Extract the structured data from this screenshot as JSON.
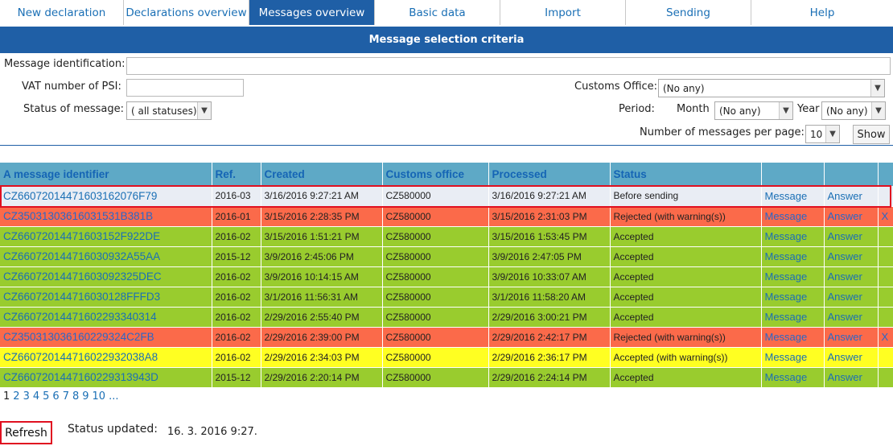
{
  "nav": {
    "tabs": [
      {
        "label": "New declaration",
        "active": false
      },
      {
        "label": "Declarations overview",
        "active": false
      },
      {
        "label": "Messages overview",
        "active": true
      },
      {
        "label": "Basic data",
        "active": false
      },
      {
        "label": "Import",
        "active": false
      },
      {
        "label": "Sending",
        "active": false
      },
      {
        "label": "Help",
        "active": false
      }
    ]
  },
  "criteria": {
    "title": "Message selection criteria",
    "message_id_label": "Message identification:",
    "message_id_value": "",
    "vat_label": "VAT number of PSI:",
    "vat_value": "",
    "status_label": "Status of message:",
    "status_value": "( all statuses)",
    "customs_office_label": "Customs Office:",
    "customs_office_value": "(No any)",
    "period_label": "Period:",
    "month_label": "Month",
    "month_value": "(No any)",
    "year_label": "Year",
    "year_value": "(No any)",
    "per_page_label": "Number of messages per page:",
    "per_page_value": "10",
    "show_button": "Show"
  },
  "table": {
    "headers": [
      "A message identifier",
      "Ref.",
      "Created",
      "Customs office",
      "Processed",
      "Status",
      "",
      "",
      ""
    ],
    "rows": [
      {
        "status_class": "before",
        "id": "CZ6607201447160316207​6F79",
        "ref": "2016-03",
        "created": "3/16/2016 9:27:21 AM",
        "office": "CZ580000",
        "processed": "3/16/2016 9:27:21 AM",
        "status": "Before sending",
        "message": "Message",
        "answer": "Answer",
        "x": ""
      },
      {
        "status_class": "rejected",
        "id": "CZ35031303616031531B381B",
        "ref": "2016-01",
        "created": "3/15/2016 2:28:35 PM",
        "office": "CZ580000",
        "processed": "3/15/2016 2:31:03 PM",
        "status": "Rejected (with warning(s))",
        "message": "Message",
        "answer": "Answer",
        "x": "X"
      },
      {
        "status_class": "accepted",
        "id": "CZ66072014471603152F922DE",
        "ref": "2016-02",
        "created": "3/15/2016 1:51:21 PM",
        "office": "CZ580000",
        "processed": "3/15/2016 1:53:45 PM",
        "status": "Accepted",
        "message": "Message",
        "answer": "Answer",
        "x": ""
      },
      {
        "status_class": "accepted",
        "id": "CZ66072014471603093​2A55AA",
        "ref": "2015-12",
        "created": "3/9/2016 2:45:06 PM",
        "office": "CZ580000",
        "processed": "3/9/2016 2:47:05 PM",
        "status": "Accepted",
        "message": "Message",
        "answer": "Answer",
        "x": ""
      },
      {
        "status_class": "accepted",
        "id": "CZ66072014471603092325DEC",
        "ref": "2016-02",
        "created": "3/9/2016 10:14:15 AM",
        "office": "CZ580000",
        "processed": "3/9/2016 10:33:07 AM",
        "status": "Accepted",
        "message": "Message",
        "answer": "Answer",
        "x": ""
      },
      {
        "status_class": "accepted",
        "id": "CZ66072014471603012​8FFFD3",
        "ref": "2016-02",
        "created": "3/1/2016 11:56:31 AM",
        "office": "CZ580000",
        "processed": "3/1/2016 11:58:20 AM",
        "status": "Accepted",
        "message": "Message",
        "answer": "Answer",
        "x": ""
      },
      {
        "status_class": "accepted",
        "id": "CZ6607201447160229334​0314",
        "ref": "2016-02",
        "created": "2/29/2016 2:55:40 PM",
        "office": "CZ580000",
        "processed": "2/29/2016 3:00:21 PM",
        "status": "Accepted",
        "message": "Message",
        "answer": "Answer",
        "x": ""
      },
      {
        "status_class": "rejected",
        "id": "CZ350313036160229324C2FB",
        "ref": "2016-02",
        "created": "2/29/2016 2:39:00 PM",
        "office": "CZ580000",
        "processed": "2/29/2016 2:42:17 PM",
        "status": "Rejected (with warning(s))",
        "message": "Message",
        "answer": "Answer",
        "x": "X"
      },
      {
        "status_class": "warning",
        "id": "CZ66072014471602293​2038A8",
        "ref": "2016-02",
        "created": "2/29/2016 2:34:03 PM",
        "office": "CZ580000",
        "processed": "2/29/2016 2:36:17 PM",
        "status": "Accepted (with warning(s))",
        "message": "Message",
        "answer": "Answer",
        "x": ""
      },
      {
        "status_class": "accepted",
        "id": "CZ66072014471602293​13943D",
        "ref": "2015-12",
        "created": "2/29/2016 2:20:14 PM",
        "office": "CZ580000",
        "processed": "2/29/2016 2:24:14 PM",
        "status": "Accepted",
        "message": "Message",
        "answer": "Answer",
        "x": ""
      }
    ]
  },
  "pager": {
    "pages": [
      "1",
      "2",
      "3",
      "4",
      "5",
      "6",
      "7",
      "8",
      "9",
      "10",
      "..."
    ],
    "current": "1"
  },
  "footer": {
    "refresh_button": "Refresh",
    "status_updated_label": "Status updated:",
    "status_updated_value": "16. 3. 2016 9:27."
  }
}
